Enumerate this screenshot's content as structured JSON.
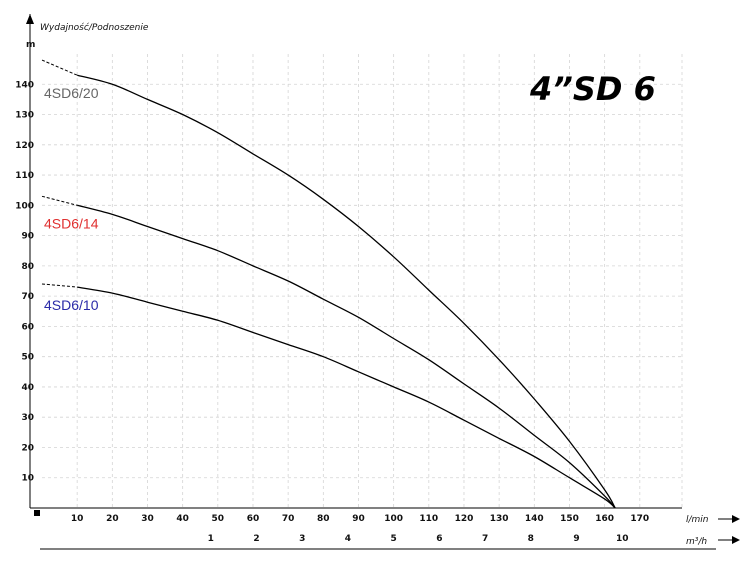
{
  "chart_data": {
    "type": "line",
    "title": "4”SD 6",
    "ylabel": "Wydajność/Podnoszenie",
    "yunit": "m",
    "xlabel_lmin": "l/min",
    "xlabel_m3h": "m³/h",
    "xlim": [
      0,
      182
    ],
    "ylim": [
      0,
      150
    ],
    "x_ticks": [
      10,
      20,
      30,
      40,
      50,
      60,
      70,
      80,
      90,
      100,
      110,
      120,
      130,
      140,
      150,
      160,
      170
    ],
    "y_ticks": [
      10,
      20,
      30,
      40,
      50,
      60,
      70,
      80,
      90,
      100,
      110,
      120,
      130,
      140
    ],
    "m3h_ticks": [
      1,
      2,
      3,
      4,
      5,
      6,
      7,
      8,
      9,
      10
    ],
    "grid": true,
    "series": [
      {
        "name": "4SD6/20",
        "color": "#666666",
        "x": [
          0,
          10,
          20,
          30,
          40,
          50,
          60,
          70,
          80,
          90,
          100,
          110,
          120,
          130,
          140,
          150,
          160,
          163
        ],
        "y": [
          148,
          143,
          140,
          135,
          130,
          124,
          117,
          110,
          102,
          93,
          83,
          72,
          61,
          49,
          36,
          22,
          6,
          0
        ]
      },
      {
        "name": "4SD6/14",
        "color": "#e03030",
        "x": [
          0,
          10,
          20,
          30,
          40,
          50,
          60,
          70,
          80,
          90,
          100,
          110,
          120,
          130,
          140,
          150,
          160,
          163
        ],
        "y": [
          103,
          100,
          97,
          93,
          89,
          85,
          80,
          75,
          69,
          63,
          56,
          49,
          41,
          33,
          24,
          15,
          4,
          0
        ]
      },
      {
        "name": "4SD6/10",
        "color": "#2a2aa8",
        "x": [
          0,
          10,
          20,
          30,
          40,
          50,
          60,
          70,
          80,
          90,
          100,
          110,
          120,
          130,
          140,
          150,
          160,
          163
        ],
        "y": [
          74,
          73,
          71,
          68,
          65,
          62,
          58,
          54,
          50,
          45,
          40,
          35,
          29,
          23,
          17,
          10,
          3,
          0
        ]
      }
    ]
  }
}
